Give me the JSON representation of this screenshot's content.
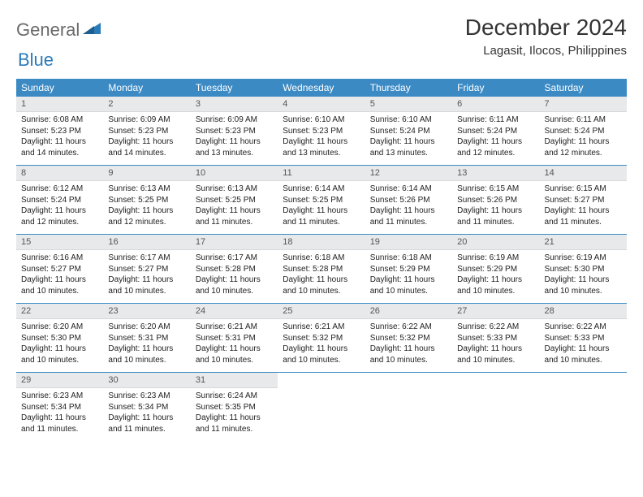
{
  "brand": {
    "text1": "General",
    "text2": "Blue",
    "color1": "#6a6a6a",
    "color2": "#2b7bb9"
  },
  "title": "December 2024",
  "location": "Lagasit, Ilocos, Philippines",
  "colors": {
    "header_bg": "#3b8ac4",
    "header_fg": "#ffffff",
    "daynum_bg": "#e7e9eb",
    "week_divider": "#3b8ac4"
  },
  "typography": {
    "title_fontsize": 28,
    "location_fontsize": 15,
    "dow_fontsize": 12,
    "daynum_fontsize": 11,
    "body_fontsize": 10
  },
  "days_of_week": [
    "Sunday",
    "Monday",
    "Tuesday",
    "Wednesday",
    "Thursday",
    "Friday",
    "Saturday"
  ],
  "weeks": [
    [
      {
        "n": "1",
        "sunrise": "Sunrise: 6:08 AM",
        "sunset": "Sunset: 5:23 PM",
        "daylight": "Daylight: 11 hours and 14 minutes."
      },
      {
        "n": "2",
        "sunrise": "Sunrise: 6:09 AM",
        "sunset": "Sunset: 5:23 PM",
        "daylight": "Daylight: 11 hours and 14 minutes."
      },
      {
        "n": "3",
        "sunrise": "Sunrise: 6:09 AM",
        "sunset": "Sunset: 5:23 PM",
        "daylight": "Daylight: 11 hours and 13 minutes."
      },
      {
        "n": "4",
        "sunrise": "Sunrise: 6:10 AM",
        "sunset": "Sunset: 5:23 PM",
        "daylight": "Daylight: 11 hours and 13 minutes."
      },
      {
        "n": "5",
        "sunrise": "Sunrise: 6:10 AM",
        "sunset": "Sunset: 5:24 PM",
        "daylight": "Daylight: 11 hours and 13 minutes."
      },
      {
        "n": "6",
        "sunrise": "Sunrise: 6:11 AM",
        "sunset": "Sunset: 5:24 PM",
        "daylight": "Daylight: 11 hours and 12 minutes."
      },
      {
        "n": "7",
        "sunrise": "Sunrise: 6:11 AM",
        "sunset": "Sunset: 5:24 PM",
        "daylight": "Daylight: 11 hours and 12 minutes."
      }
    ],
    [
      {
        "n": "8",
        "sunrise": "Sunrise: 6:12 AM",
        "sunset": "Sunset: 5:24 PM",
        "daylight": "Daylight: 11 hours and 12 minutes."
      },
      {
        "n": "9",
        "sunrise": "Sunrise: 6:13 AM",
        "sunset": "Sunset: 5:25 PM",
        "daylight": "Daylight: 11 hours and 12 minutes."
      },
      {
        "n": "10",
        "sunrise": "Sunrise: 6:13 AM",
        "sunset": "Sunset: 5:25 PM",
        "daylight": "Daylight: 11 hours and 11 minutes."
      },
      {
        "n": "11",
        "sunrise": "Sunrise: 6:14 AM",
        "sunset": "Sunset: 5:25 PM",
        "daylight": "Daylight: 11 hours and 11 minutes."
      },
      {
        "n": "12",
        "sunrise": "Sunrise: 6:14 AM",
        "sunset": "Sunset: 5:26 PM",
        "daylight": "Daylight: 11 hours and 11 minutes."
      },
      {
        "n": "13",
        "sunrise": "Sunrise: 6:15 AM",
        "sunset": "Sunset: 5:26 PM",
        "daylight": "Daylight: 11 hours and 11 minutes."
      },
      {
        "n": "14",
        "sunrise": "Sunrise: 6:15 AM",
        "sunset": "Sunset: 5:27 PM",
        "daylight": "Daylight: 11 hours and 11 minutes."
      }
    ],
    [
      {
        "n": "15",
        "sunrise": "Sunrise: 6:16 AM",
        "sunset": "Sunset: 5:27 PM",
        "daylight": "Daylight: 11 hours and 10 minutes."
      },
      {
        "n": "16",
        "sunrise": "Sunrise: 6:17 AM",
        "sunset": "Sunset: 5:27 PM",
        "daylight": "Daylight: 11 hours and 10 minutes."
      },
      {
        "n": "17",
        "sunrise": "Sunrise: 6:17 AM",
        "sunset": "Sunset: 5:28 PM",
        "daylight": "Daylight: 11 hours and 10 minutes."
      },
      {
        "n": "18",
        "sunrise": "Sunrise: 6:18 AM",
        "sunset": "Sunset: 5:28 PM",
        "daylight": "Daylight: 11 hours and 10 minutes."
      },
      {
        "n": "19",
        "sunrise": "Sunrise: 6:18 AM",
        "sunset": "Sunset: 5:29 PM",
        "daylight": "Daylight: 11 hours and 10 minutes."
      },
      {
        "n": "20",
        "sunrise": "Sunrise: 6:19 AM",
        "sunset": "Sunset: 5:29 PM",
        "daylight": "Daylight: 11 hours and 10 minutes."
      },
      {
        "n": "21",
        "sunrise": "Sunrise: 6:19 AM",
        "sunset": "Sunset: 5:30 PM",
        "daylight": "Daylight: 11 hours and 10 minutes."
      }
    ],
    [
      {
        "n": "22",
        "sunrise": "Sunrise: 6:20 AM",
        "sunset": "Sunset: 5:30 PM",
        "daylight": "Daylight: 11 hours and 10 minutes."
      },
      {
        "n": "23",
        "sunrise": "Sunrise: 6:20 AM",
        "sunset": "Sunset: 5:31 PM",
        "daylight": "Daylight: 11 hours and 10 minutes."
      },
      {
        "n": "24",
        "sunrise": "Sunrise: 6:21 AM",
        "sunset": "Sunset: 5:31 PM",
        "daylight": "Daylight: 11 hours and 10 minutes."
      },
      {
        "n": "25",
        "sunrise": "Sunrise: 6:21 AM",
        "sunset": "Sunset: 5:32 PM",
        "daylight": "Daylight: 11 hours and 10 minutes."
      },
      {
        "n": "26",
        "sunrise": "Sunrise: 6:22 AM",
        "sunset": "Sunset: 5:32 PM",
        "daylight": "Daylight: 11 hours and 10 minutes."
      },
      {
        "n": "27",
        "sunrise": "Sunrise: 6:22 AM",
        "sunset": "Sunset: 5:33 PM",
        "daylight": "Daylight: 11 hours and 10 minutes."
      },
      {
        "n": "28",
        "sunrise": "Sunrise: 6:22 AM",
        "sunset": "Sunset: 5:33 PM",
        "daylight": "Daylight: 11 hours and 10 minutes."
      }
    ],
    [
      {
        "n": "29",
        "sunrise": "Sunrise: 6:23 AM",
        "sunset": "Sunset: 5:34 PM",
        "daylight": "Daylight: 11 hours and 11 minutes."
      },
      {
        "n": "30",
        "sunrise": "Sunrise: 6:23 AM",
        "sunset": "Sunset: 5:34 PM",
        "daylight": "Daylight: 11 hours and 11 minutes."
      },
      {
        "n": "31",
        "sunrise": "Sunrise: 6:24 AM",
        "sunset": "Sunset: 5:35 PM",
        "daylight": "Daylight: 11 hours and 11 minutes."
      },
      {
        "empty": true
      },
      {
        "empty": true
      },
      {
        "empty": true
      },
      {
        "empty": true
      }
    ]
  ]
}
